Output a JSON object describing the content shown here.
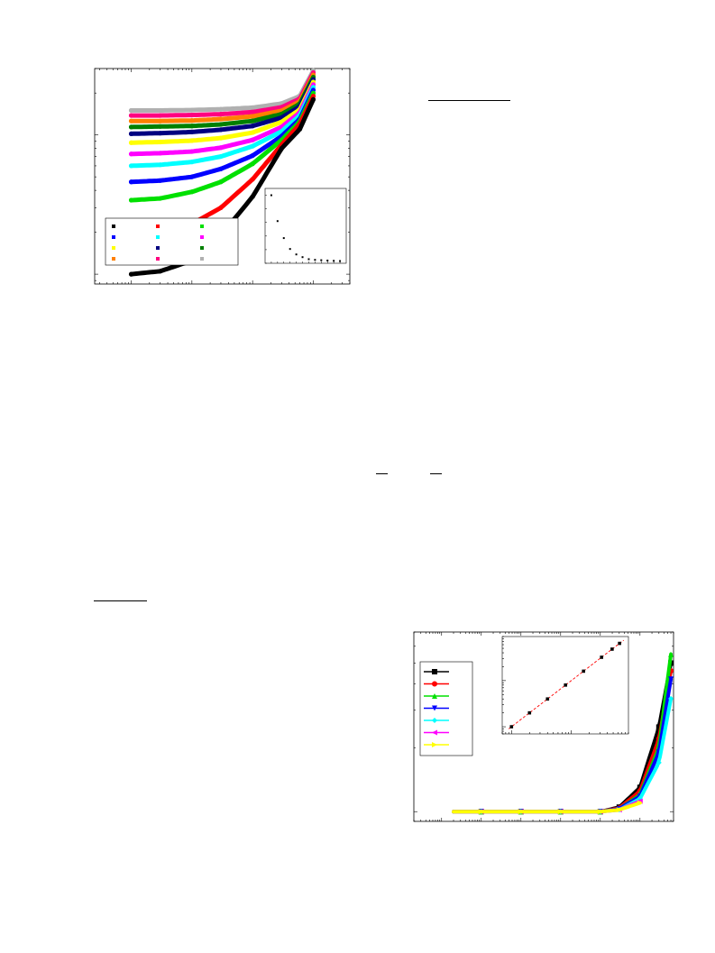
{
  "page": {
    "type": "paper"
  },
  "figures": [
    {
      "id": "figure-1",
      "legend": {
        "entries": [
          {
            "color": "#000000"
          },
          {
            "color": "#ff0000"
          },
          {
            "color": "#00e000"
          },
          {
            "color": "#0000ff"
          },
          {
            "color": "#00ffff"
          },
          {
            "color": "#ff00ff"
          },
          {
            "color": "#ffff00"
          },
          {
            "color": "#000080"
          },
          {
            "color": "#008000"
          },
          {
            "color": "#ff8000"
          },
          {
            "color": "#ff0080"
          },
          {
            "color": "#b0b0b0"
          }
        ]
      },
      "inset": {
        "type": "scatter",
        "marker_color": "#000000"
      }
    },
    {
      "id": "figure-2",
      "legend": {
        "entries": [
          {
            "color": "#000000",
            "marker": "square"
          },
          {
            "color": "#ff0000",
            "marker": "circle"
          },
          {
            "color": "#00e000",
            "marker": "triangle-up"
          },
          {
            "color": "#0000ff",
            "marker": "triangle-down"
          },
          {
            "color": "#00ffff",
            "marker": "diamond"
          },
          {
            "color": "#ff00ff",
            "marker": "triangle-left"
          },
          {
            "color": "#ffff00",
            "marker": "triangle-right"
          }
        ]
      },
      "inset": {
        "type": "scatter",
        "marker_color": "#000000",
        "fit_line_color": "#ff0000",
        "fit_line_style": "dashed"
      }
    }
  ],
  "chart_data": [
    {
      "type": "scatter",
      "xscale": "log",
      "yscale": "log",
      "series": [
        {
          "color": "#000000",
          "x": [
            1.0,
            3.0,
            10.0,
            30.0,
            100.0,
            300.0,
            600.0,
            1000.0
          ],
          "y": [
            1.0,
            1.05,
            1.25,
            1.9,
            3.6,
            8.0,
            11.0,
            18.0
          ]
        },
        {
          "color": "#ff0000",
          "x": [
            1.0,
            3.0,
            10.0,
            30.0,
            100.0,
            300.0,
            600.0,
            1000.0
          ],
          "y": [
            1.9,
            2.0,
            2.3,
            3.0,
            4.8,
            8.5,
            12.0,
            19.0
          ]
        },
        {
          "color": "#00e000",
          "x": [
            1.0,
            3.0,
            10.0,
            30.0,
            100.0,
            300.0,
            600.0,
            1000.0
          ],
          "y": [
            3.4,
            3.5,
            3.9,
            4.6,
            6.2,
            9.2,
            12.5,
            20.0
          ]
        },
        {
          "color": "#0000ff",
          "x": [
            1.0,
            3.0,
            10.0,
            30.0,
            100.0,
            300.0,
            600.0,
            1000.0
          ],
          "y": [
            4.6,
            4.7,
            5.0,
            5.7,
            7.1,
            9.8,
            13.0,
            21.0
          ]
        },
        {
          "color": "#00ffff",
          "x": [
            1.0,
            3.0,
            10.0,
            30.0,
            100.0,
            300.0,
            600.0,
            1000.0
          ],
          "y": [
            6.0,
            6.1,
            6.4,
            7.0,
            8.3,
            10.6,
            13.8,
            22.0
          ]
        },
        {
          "color": "#ff00ff",
          "x": [
            1.0,
            3.0,
            10.0,
            30.0,
            100.0,
            300.0,
            600.0,
            1000.0
          ],
          "y": [
            7.3,
            7.4,
            7.6,
            8.1,
            9.2,
            11.4,
            14.5,
            23.0
          ]
        },
        {
          "color": "#ffff00",
          "x": [
            1.0,
            3.0,
            10.0,
            30.0,
            100.0,
            300.0,
            600.0,
            1000.0
          ],
          "y": [
            8.8,
            8.9,
            9.1,
            9.5,
            10.4,
            12.4,
            15.2,
            24.0
          ]
        },
        {
          "color": "#000080",
          "x": [
            1.0,
            3.0,
            10.0,
            30.0,
            100.0,
            300.0,
            600.0,
            1000.0
          ],
          "y": [
            10.2,
            10.3,
            10.5,
            10.9,
            11.6,
            13.3,
            16.0,
            25.0
          ]
        },
        {
          "color": "#008000",
          "x": [
            1.0,
            3.0,
            10.0,
            30.0,
            100.0,
            300.0,
            600.0,
            1000.0
          ],
          "y": [
            11.4,
            11.5,
            11.6,
            11.9,
            12.6,
            14.1,
            16.7,
            26.0
          ]
        },
        {
          "color": "#ff8000",
          "x": [
            1.0,
            3.0,
            10.0,
            30.0,
            100.0,
            300.0,
            600.0,
            1000.0
          ],
          "y": [
            12.6,
            12.6,
            12.7,
            13.0,
            13.6,
            14.9,
            17.4,
            27.0
          ]
        },
        {
          "color": "#ff0080",
          "x": [
            1.0,
            3.0,
            10.0,
            30.0,
            100.0,
            300.0,
            600.0,
            1000.0
          ],
          "y": [
            13.8,
            13.8,
            13.9,
            14.1,
            14.6,
            15.8,
            18.2,
            28.0
          ]
        },
        {
          "color": "#b0b0b0",
          "x": [
            1.0,
            3.0,
            10.0,
            30.0,
            100.0,
            300.0,
            600.0,
            1000.0
          ],
          "y": [
            15.0,
            15.0,
            15.1,
            15.3,
            15.7,
            16.8,
            19.0,
            29.0
          ]
        }
      ],
      "grid": false,
      "legend_position": "bottom-left"
    },
    {
      "type": "scatter",
      "series": [
        {
          "color": "#000000",
          "x": [
            1,
            2,
            3,
            4,
            5,
            6,
            7,
            8,
            9,
            10,
            11,
            12
          ],
          "y": [
            100,
            62,
            37,
            21,
            13,
            9,
            6,
            5,
            4.5,
            4,
            3.6,
            3.3
          ]
        }
      ],
      "legend_position": "none"
    },
    {
      "type": "line",
      "xscale": "log",
      "yscale": "log",
      "series": [
        {
          "color": "#000000",
          "marker": "square",
          "x": [
            0.1,
            1.0,
            10.0,
            100.0,
            1000.0,
            3000.0,
            10000.0,
            30000.0,
            60000.0
          ],
          "y": [
            1.0,
            1.0,
            1.0,
            1.0,
            1.0,
            1.05,
            1.3,
            2.5,
            5.0
          ]
        },
        {
          "color": "#ff0000",
          "marker": "circle",
          "x": [
            0.1,
            1.0,
            10.0,
            100.0,
            1000.0,
            3000.0,
            10000.0,
            30000.0,
            60000.0
          ],
          "y": [
            1.0,
            1.0,
            1.0,
            1.0,
            1.0,
            1.04,
            1.25,
            2.2,
            4.6
          ]
        },
        {
          "color": "#00e000",
          "marker": "triangle-up",
          "x": [
            0.1,
            1.0,
            10.0,
            100.0,
            1000.0,
            3000.0,
            10000.0,
            30000.0,
            60000.0
          ],
          "y": [
            1.0,
            1.0,
            1.0,
            1.0,
            1.0,
            1.03,
            1.2,
            2.0,
            5.5
          ]
        },
        {
          "color": "#0000ff",
          "marker": "triangle-down",
          "x": [
            0.1,
            1.0,
            10.0,
            100.0,
            1000.0,
            3000.0,
            10000.0,
            30000.0,
            60000.0
          ],
          "y": [
            1.0,
            1.0,
            1.0,
            1.0,
            1.0,
            1.03,
            1.18,
            1.9,
            4.2
          ]
        },
        {
          "color": "#00ffff",
          "marker": "diamond",
          "x": [
            0.1,
            1.0,
            10.0,
            100.0,
            1000.0,
            3000.0,
            10000.0,
            30000.0,
            60000.0
          ],
          "y": [
            1.0,
            1.0,
            1.0,
            1.0,
            1.0,
            1.02,
            1.15,
            1.7,
            3.4
          ]
        },
        {
          "color": "#ff00ff",
          "marker": "triangle-left",
          "x": [
            0.1,
            1.0,
            10.0,
            100.0,
            1000.0,
            3000.0,
            10000.0
          ],
          "y": [
            1.0,
            1.0,
            1.0,
            1.0,
            1.0,
            1.02,
            1.12
          ]
        },
        {
          "color": "#ffff00",
          "marker": "triangle-right",
          "x": [
            0.1,
            1.0,
            10.0,
            100.0,
            1000.0,
            3000.0,
            10000.0
          ],
          "y": [
            1.0,
            1.0,
            1.0,
            1.0,
            1.0,
            1.02,
            1.1
          ]
        }
      ],
      "grid": false,
      "legend_position": "left"
    },
    {
      "type": "scatter",
      "xscale": "log",
      "yscale": "log",
      "series": [
        {
          "color": "#000000",
          "x": [
            1,
            2,
            4,
            8,
            16,
            32,
            48,
            64
          ],
          "y": [
            1,
            2,
            4,
            8,
            16,
            32,
            48,
            64
          ]
        }
      ],
      "fit_line": {
        "color": "#ff0000",
        "style": "dashed"
      },
      "legend_position": "none"
    }
  ]
}
